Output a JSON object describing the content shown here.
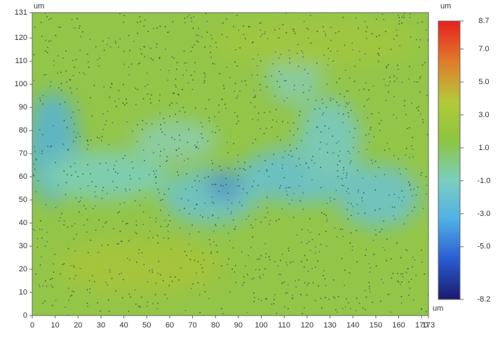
{
  "chart_data": {
    "type": "heatmap",
    "x_unit": "um",
    "y_unit": "um",
    "z_unit": "um",
    "xlim": [
      0,
      173
    ],
    "ylim": [
      0,
      131
    ],
    "zlim": [
      -8.2,
      8.7
    ],
    "xticks": [
      0,
      10,
      20,
      30,
      40,
      50,
      60,
      70,
      80,
      90,
      100,
      110,
      120,
      130,
      140,
      150,
      160,
      170,
      173
    ],
    "yticks": [
      0,
      10,
      20,
      30,
      40,
      50,
      60,
      70,
      80,
      90,
      100,
      110,
      120,
      131
    ],
    "zticks": [
      -8.2,
      {
        "value": -5,
        "label": "-5.0"
      },
      {
        "value": -3,
        "label": "-3.0"
      },
      {
        "value": -1,
        "label": "-1.0"
      },
      {
        "value": 1,
        "label": "1.0"
      },
      {
        "value": 3,
        "label": "3.0"
      },
      {
        "value": 5,
        "label": "5.0"
      },
      {
        "value": 7,
        "label": "7.0"
      },
      8.7
    ],
    "colormap": [
      "#1a1a6e",
      "#2a5bd0",
      "#4fb0e6",
      "#7ccfc0",
      "#8cc63f",
      "#b5c83a",
      "#e07a2a",
      "#e8201e"
    ]
  }
}
